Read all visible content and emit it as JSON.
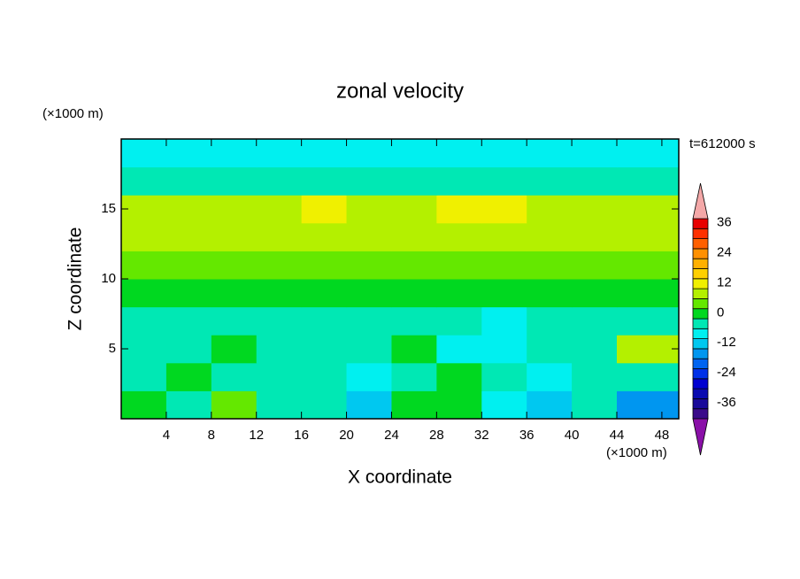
{
  "chart_data": {
    "type": "contour",
    "title": "zonal velocity",
    "xlabel": "X coordinate",
    "ylabel": "Z coordinate",
    "x_unit": "(×1000 m)",
    "y_unit": "(×1000 m)",
    "annotation": "t=612000 s",
    "xlim": [
      0,
      49.5
    ],
    "ylim": [
      0,
      20
    ],
    "xticks": [
      4,
      8,
      12,
      16,
      20,
      24,
      28,
      32,
      36,
      40,
      44,
      48
    ],
    "yticks": [
      5,
      10,
      15
    ],
    "x": [
      2,
      6,
      10,
      14,
      18,
      22,
      26,
      30,
      34,
      38,
      42,
      46
    ],
    "y": [
      1,
      3,
      5,
      7,
      9,
      11,
      13,
      15,
      17,
      19
    ],
    "z": [
      [
        0,
        -2,
        6,
        -3,
        -2,
        -12,
        2,
        3,
        -5,
        -10,
        -3,
        -14
      ],
      [
        -3,
        1,
        -3,
        -3,
        -3,
        -5,
        -2,
        1,
        -3,
        -5,
        -3,
        -3
      ],
      [
        -3,
        -3,
        1,
        -3,
        -2,
        -3,
        2,
        -5,
        -7,
        -2,
        -3,
        9
      ],
      [
        -3,
        -3,
        -2,
        -3,
        -3,
        -2,
        -3,
        -3,
        -5,
        -3,
        -3,
        -3
      ],
      [
        3,
        3,
        2,
        2,
        2,
        3,
        2,
        3,
        3,
        2,
        2,
        3
      ],
      [
        6,
        5,
        6,
        6,
        6,
        6,
        6,
        6,
        6,
        6,
        5,
        5
      ],
      [
        8,
        9,
        9,
        9,
        9,
        9,
        10,
        9,
        9,
        9,
        9,
        8
      ],
      [
        10,
        10,
        10,
        10,
        13,
        10,
        10,
        13,
        13,
        10,
        10,
        10
      ],
      [
        -1,
        -2,
        -2,
        -2,
        -2,
        -2,
        -1,
        -1,
        -2,
        -2,
        -2,
        -1
      ],
      [
        -6,
        -6,
        -6,
        -6,
        -6,
        -6,
        -6,
        -6,
        -6,
        -6,
        -6,
        -6
      ]
    ],
    "levels": [
      -40,
      -36,
      -32,
      -28,
      -24,
      -20,
      -16,
      -12,
      -8,
      -4,
      0,
      4,
      8,
      12,
      16,
      20,
      24,
      28,
      32,
      36,
      40
    ],
    "colors": [
      "#3a0a8a",
      "#1a0a9a",
      "#0a0ab0",
      "#0000d0",
      "#0030e8",
      "#0064f0",
      "#0096f0",
      "#00c8f0",
      "#00f0f0",
      "#00e8b4",
      "#00d820",
      "#64e800",
      "#b4f000",
      "#f0f000",
      "#ffd000",
      "#ffb000",
      "#ff9000",
      "#ff6000",
      "#ff3000",
      "#e80000"
    ],
    "under_color": "#8a10a8",
    "over_color": "#f4a8a8",
    "colorbar_ticks": [
      36,
      24,
      12,
      0,
      -12,
      -24,
      -36
    ]
  }
}
